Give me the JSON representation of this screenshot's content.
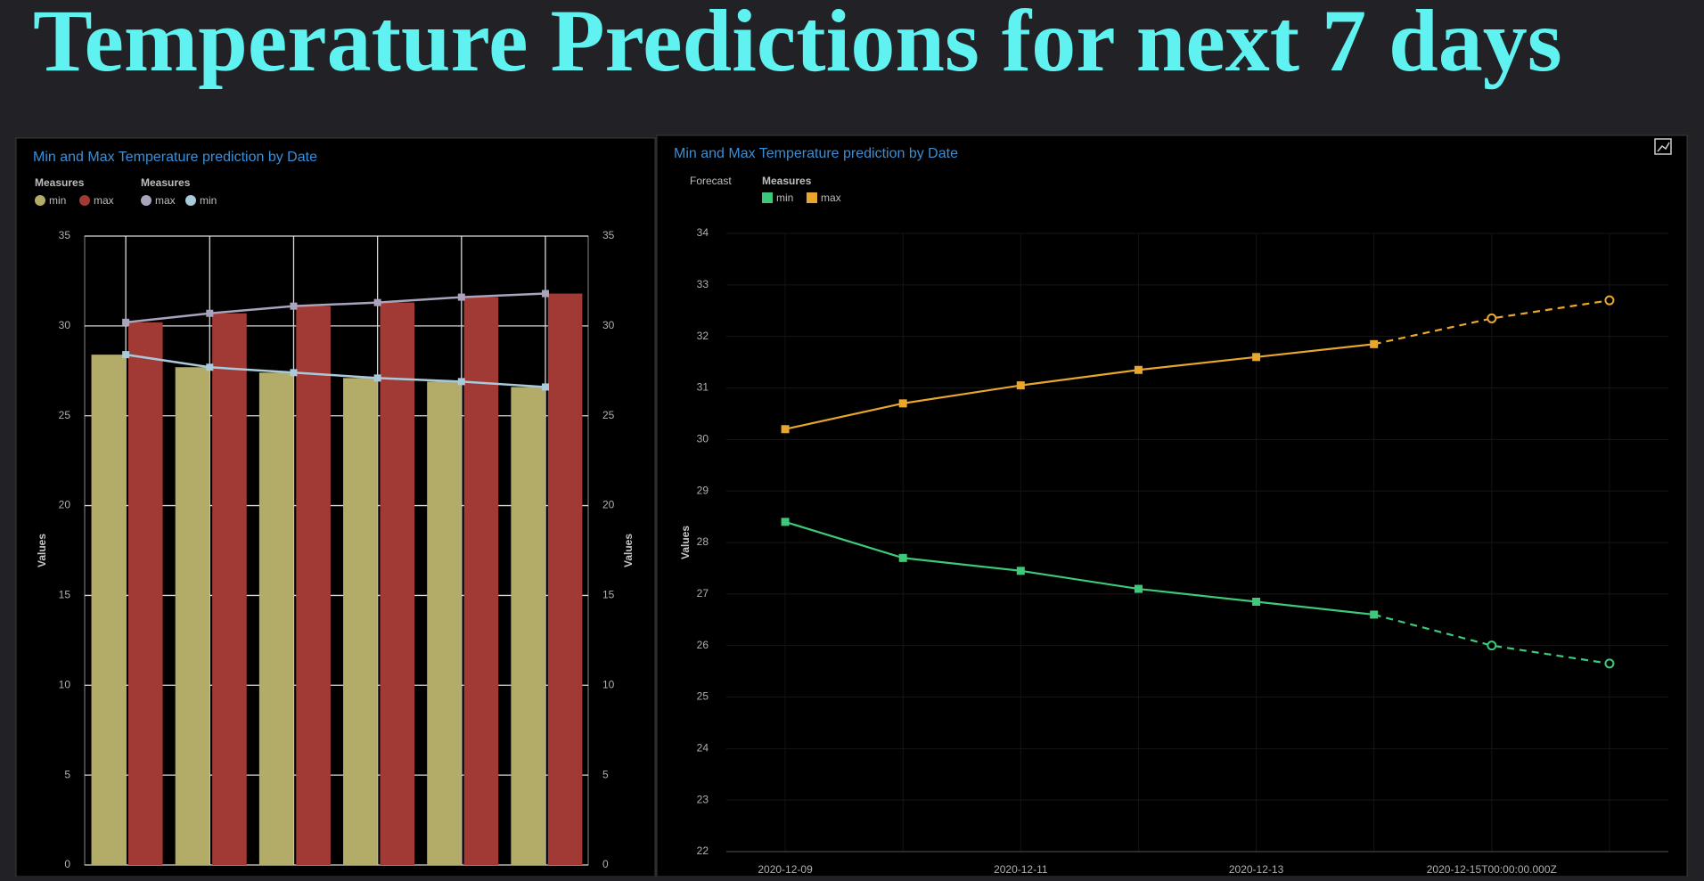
{
  "header": {
    "title": "Temperature Predictions for next 7 days"
  },
  "chart_data": [
    {
      "type": "combo",
      "title": "Min and Max Temperature prediction by Date",
      "legend_titles": [
        "Measures",
        "Measures"
      ],
      "categories": [
        null,
        null,
        null,
        null,
        null,
        null
      ],
      "series": [
        {
          "name": "min",
          "type": "bar",
          "color": "#b3ab68",
          "values": [
            28.4,
            27.7,
            27.4,
            27.1,
            26.9,
            26.6
          ]
        },
        {
          "name": "max",
          "type": "bar",
          "color": "#a13a35",
          "values": [
            30.2,
            30.7,
            31.1,
            31.3,
            31.6,
            31.8
          ]
        },
        {
          "name": "max",
          "type": "line",
          "axis": "y2",
          "color": "#a9a3bb",
          "values": [
            30.2,
            30.7,
            31.1,
            31.3,
            31.6,
            31.8
          ]
        },
        {
          "name": "min",
          "type": "line",
          "axis": "y2",
          "color": "#a8cadb",
          "values": [
            28.4,
            27.7,
            27.4,
            27.1,
            26.9,
            26.6
          ]
        }
      ],
      "ylabel": "Values",
      "y2label": "Values",
      "ylim": [
        0,
        35
      ],
      "yticks": [
        0,
        5,
        10,
        15,
        20,
        25,
        30,
        35
      ],
      "y2lim": [
        0,
        35
      ],
      "y2ticks": [
        0,
        5,
        10,
        15,
        20,
        25,
        30,
        35
      ],
      "grid": true
    },
    {
      "type": "line",
      "title": "Min and Max Temperature prediction by Date",
      "legend_titles": [
        "Forecast",
        "Measures"
      ],
      "categories": [
        "2020-12-09",
        null,
        "2020-12-11",
        null,
        "2020-12-13",
        null,
        "2020-12-15T00:00:00.000Z",
        null
      ],
      "forecast_from": 5,
      "series": [
        {
          "name": "min",
          "color": "#3ec97a",
          "values": [
            28.4,
            27.7,
            27.45,
            27.1,
            26.85,
            26.6,
            26.0,
            25.65
          ]
        },
        {
          "name": "max",
          "color": "#e8a62c",
          "values": [
            30.2,
            30.7,
            31.05,
            31.35,
            31.6,
            31.85,
            32.35,
            32.7
          ]
        }
      ],
      "ylabel": "Values",
      "ylim": [
        22,
        34
      ],
      "yticks": [
        22,
        23,
        24,
        25,
        26,
        27,
        28,
        29,
        30,
        31,
        32,
        33,
        34
      ],
      "grid": true
    }
  ]
}
